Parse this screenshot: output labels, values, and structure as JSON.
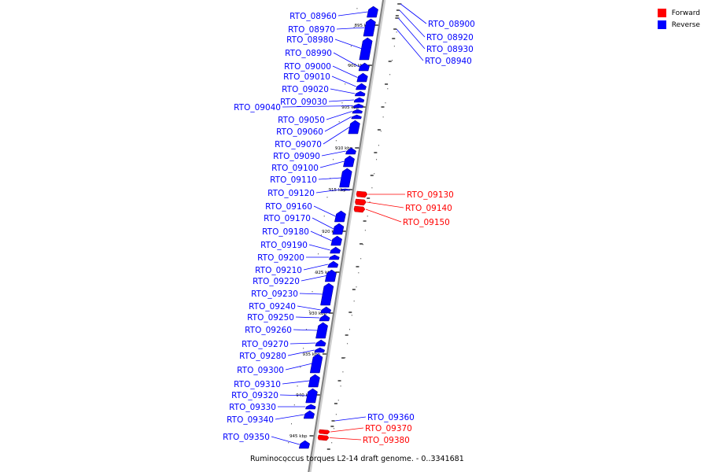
{
  "legend": {
    "forward_label": "Forward",
    "reverse_label": "Reverse",
    "forward_color": "#ff0000",
    "reverse_color": "#0000ff"
  },
  "caption": "Ruminococcus torques L2-14 draft genome. - 0..3341681",
  "kbp_marks": [
    "895 kbp",
    "900 kbp",
    "905 kbp",
    "910 kbp",
    "915 kbp",
    "920 kbp",
    "925 kbp",
    "930 kbp",
    "935 kbp",
    "940 kbp",
    "945 kbp"
  ],
  "genes": [
    {
      "id": "RTO_08900",
      "strand": "reverse"
    },
    {
      "id": "RTO_08920",
      "strand": "reverse"
    },
    {
      "id": "RTO_08930",
      "strand": "reverse"
    },
    {
      "id": "RTO_08940",
      "strand": "reverse"
    },
    {
      "id": "RTO_08960",
      "strand": "reverse"
    },
    {
      "id": "RTO_08970",
      "strand": "reverse"
    },
    {
      "id": "RTO_08980",
      "strand": "reverse"
    },
    {
      "id": "RTO_08990",
      "strand": "reverse"
    },
    {
      "id": "RTO_09000",
      "strand": "reverse"
    },
    {
      "id": "RTO_09010",
      "strand": "reverse"
    },
    {
      "id": "RTO_09020",
      "strand": "reverse"
    },
    {
      "id": "RTO_09030",
      "strand": "reverse"
    },
    {
      "id": "RTO_09040",
      "strand": "reverse"
    },
    {
      "id": "RTO_09050",
      "strand": "reverse"
    },
    {
      "id": "RTO_09060",
      "strand": "reverse"
    },
    {
      "id": "RTO_09070",
      "strand": "reverse"
    },
    {
      "id": "RTO_09090",
      "strand": "reverse"
    },
    {
      "id": "RTO_09100",
      "strand": "reverse"
    },
    {
      "id": "RTO_09110",
      "strand": "reverse"
    },
    {
      "id": "RTO_09120",
      "strand": "reverse"
    },
    {
      "id": "RTO_09130",
      "strand": "forward"
    },
    {
      "id": "RTO_09140",
      "strand": "forward"
    },
    {
      "id": "RTO_09150",
      "strand": "forward"
    },
    {
      "id": "RTO_09160",
      "strand": "reverse"
    },
    {
      "id": "RTO_09170",
      "strand": "reverse"
    },
    {
      "id": "RTO_09180",
      "strand": "reverse"
    },
    {
      "id": "RTO_09190",
      "strand": "reverse"
    },
    {
      "id": "RTO_09200",
      "strand": "reverse"
    },
    {
      "id": "RTO_09210",
      "strand": "reverse"
    },
    {
      "id": "RTO_09220",
      "strand": "reverse"
    },
    {
      "id": "RTO_09230",
      "strand": "reverse"
    },
    {
      "id": "RTO_09240",
      "strand": "reverse"
    },
    {
      "id": "RTO_09250",
      "strand": "reverse"
    },
    {
      "id": "RTO_09260",
      "strand": "reverse"
    },
    {
      "id": "RTO_09270",
      "strand": "reverse"
    },
    {
      "id": "RTO_09280",
      "strand": "reverse"
    },
    {
      "id": "RTO_09300",
      "strand": "reverse"
    },
    {
      "id": "RTO_09310",
      "strand": "reverse"
    },
    {
      "id": "RTO_09320",
      "strand": "reverse"
    },
    {
      "id": "RTO_09330",
      "strand": "reverse"
    },
    {
      "id": "RTO_09340",
      "strand": "reverse"
    },
    {
      "id": "RTO_09350",
      "strand": "reverse"
    },
    {
      "id": "RTO_09360",
      "strand": "reverse"
    },
    {
      "id": "RTO_09370",
      "strand": "forward"
    },
    {
      "id": "RTO_09380",
      "strand": "forward"
    }
  ]
}
